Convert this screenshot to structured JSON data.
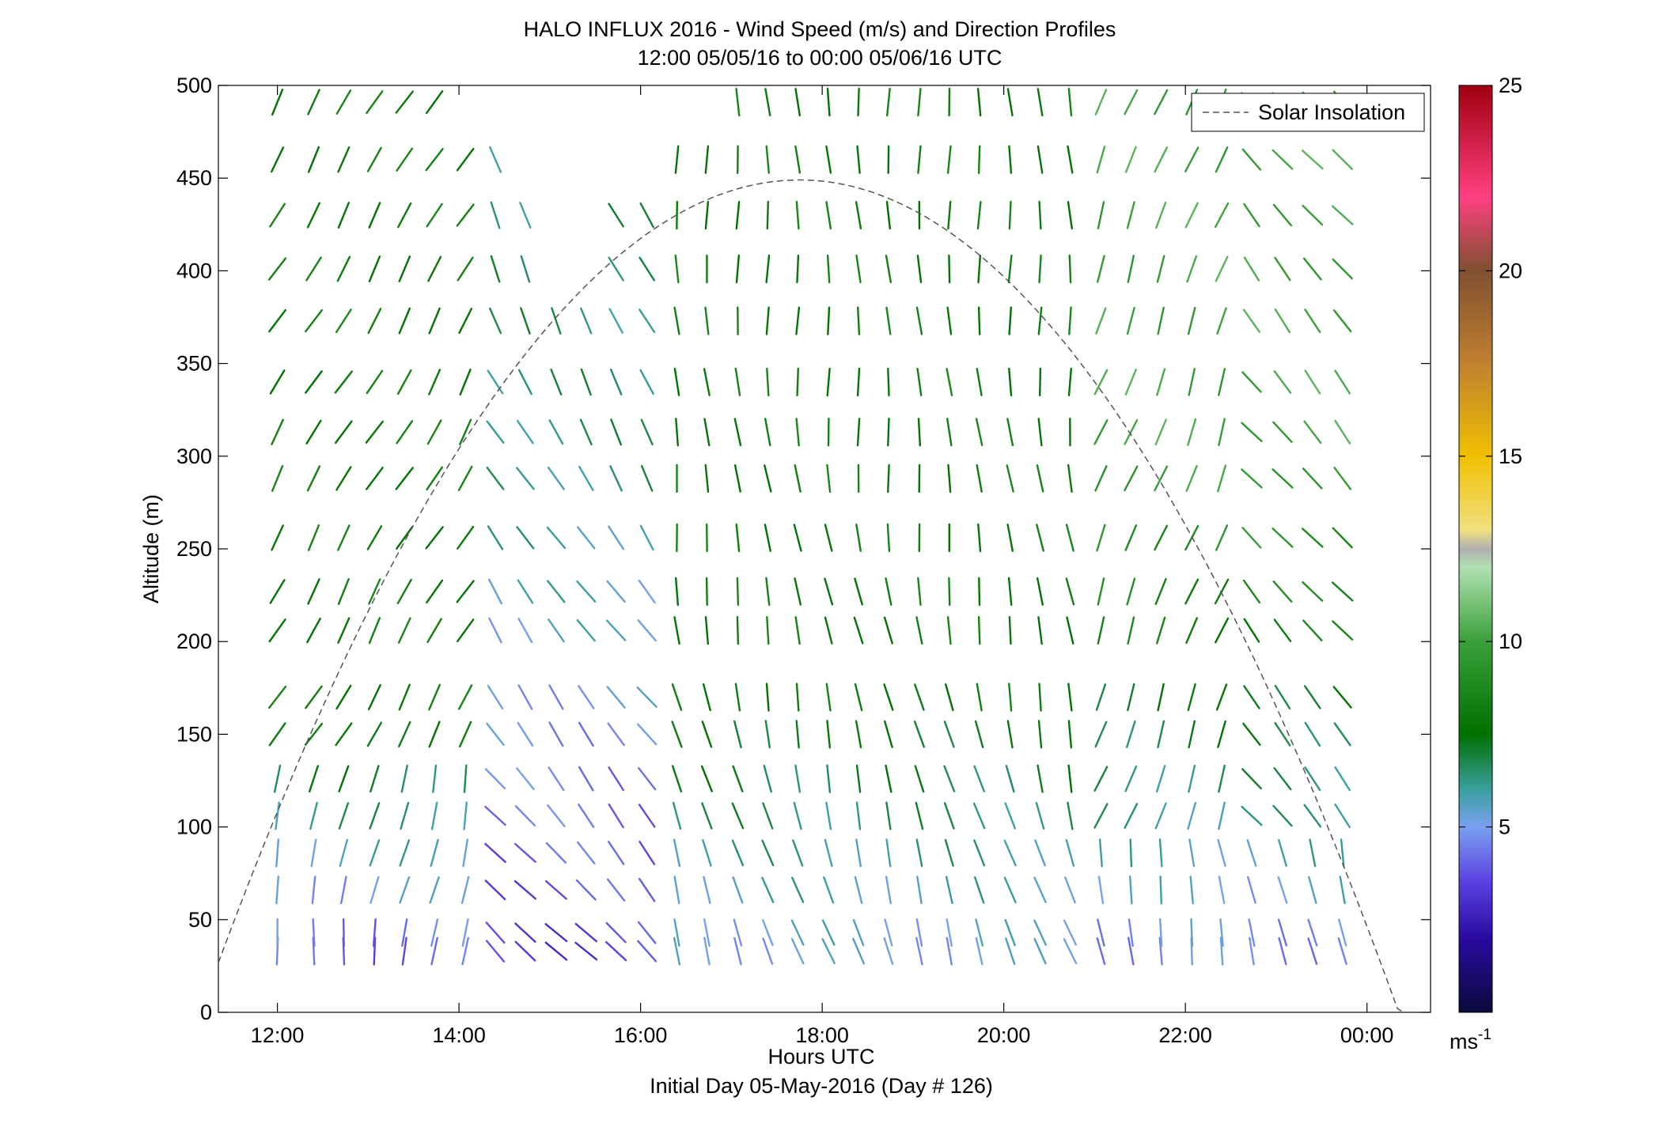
{
  "chart_data": {
    "type": "wind-barb-profile",
    "title": "HALO INFLUX 2016 - Wind Speed (m/s) and Direction Profiles",
    "subtitle": "12:00 05/05/16 to 00:00 05/06/16  UTC",
    "xlabel": "Hours UTC",
    "xlabel2": "Initial Day 05-May-2016 (Day # 126)",
    "ylabel": "Altitude (m)",
    "ylim": [
      0,
      500
    ],
    "xlim_hours": [
      11.35,
      24.7
    ],
    "yticks": [
      "0",
      "50",
      "100",
      "150",
      "200",
      "250",
      "300",
      "350",
      "400",
      "450",
      "500"
    ],
    "xticks": [
      "12:00",
      "14:00",
      "16:00",
      "18:00",
      "20:00",
      "22:00",
      "00:00"
    ],
    "colorbar": {
      "min": 0,
      "max": 25,
      "ticks": [
        "5",
        "10",
        "15",
        "20",
        "25"
      ],
      "unit": "ms",
      "unit_exp": "-1"
    },
    "legend": {
      "label": "Solar Insolation",
      "placement": "top-right"
    },
    "solar_curve": {
      "peak_hour": 17.75,
      "peak_altitude_m": 449,
      "sunrise_hour": 11.15,
      "sunset_hour": 24.4
    },
    "profile_hours": [
      12.0,
      12.4,
      12.73,
      13.07,
      13.4,
      13.73,
      14.07,
      14.4,
      14.73,
      15.07,
      15.4,
      15.73,
      16.07,
      16.4,
      16.73,
      17.07,
      17.4,
      17.73,
      18.07,
      18.4,
      18.73,
      19.07,
      19.4,
      19.73,
      20.07,
      20.4,
      20.73,
      21.07,
      21.4,
      21.73,
      22.07,
      22.4,
      22.73,
      23.07,
      23.4,
      23.73
    ],
    "levels_m": [
      33,
      43,
      66,
      86,
      106,
      126,
      150,
      170,
      206,
      227,
      256,
      288,
      313,
      340,
      373,
      401,
      430,
      460,
      491
    ],
    "wind_regimes": [
      {
        "period": "12:00-14:00",
        "low_levels_speed_ms": 3,
        "upper_levels_speed_ms": 8,
        "upper_direction": "southwesterly"
      },
      {
        "period": "14:00-16:00",
        "low_levels_speed_ms": 4,
        "upper_levels_speed_ms": 6,
        "upper_direction": "northwesterly"
      },
      {
        "period": "16:00-21:00",
        "low_levels_speed_ms": 5,
        "upper_levels_speed_ms": 8,
        "upper_direction": "northerly"
      },
      {
        "period": "21:00-00:00",
        "low_levels_speed_ms": 4,
        "upper_levels_speed_ms": 10,
        "upper_direction": "northwesterly"
      }
    ]
  }
}
